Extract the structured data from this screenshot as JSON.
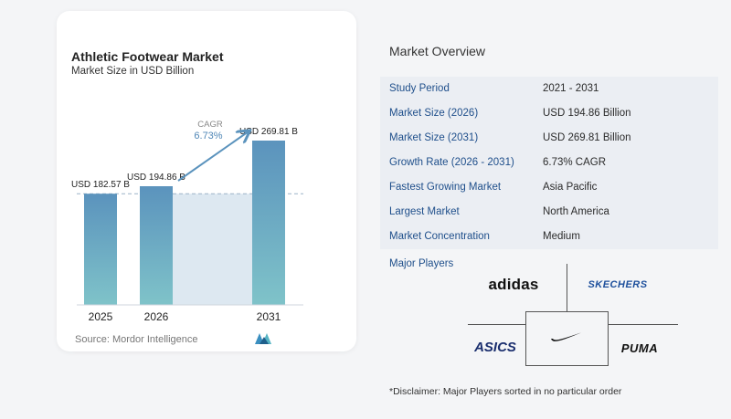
{
  "chart_data": {
    "type": "bar",
    "title": "Athletic Footwear Market",
    "subtitle": "Market Size in USD Billion",
    "categories": [
      "2025",
      "2026",
      "2031"
    ],
    "values": [
      182.57,
      194.86,
      269.81
    ],
    "data_labels": [
      "USD 182.57 B",
      "USD 194.86 B",
      "USD 269.81 B"
    ],
    "cagr_label": "CAGR",
    "cagr_value": "6.73%",
    "bar_color_top": "#5b93bd",
    "bar_color_bottom": "#7fc3c9",
    "band_color": "#dde8f1"
  },
  "source": "Source:  Mordor Intelligence",
  "overview": {
    "title": "Market Overview",
    "rows": [
      {
        "label": "Study Period",
        "value": "2021 - 2031"
      },
      {
        "label": "Market Size (2026)",
        "value": "USD 194.86 Billion"
      },
      {
        "label": "Market Size (2031)",
        "value": "USD 269.81 Billion"
      },
      {
        "label": "Growth Rate (2026 - 2031)",
        "value": "6.73% CAGR"
      },
      {
        "label": "Fastest Growing Market",
        "value": "Asia Pacific"
      },
      {
        "label": "Largest Market",
        "value": "North America"
      },
      {
        "label": "Market Concentration",
        "value": "Medium"
      }
    ]
  },
  "players": {
    "title": "Major Players",
    "brands": [
      "adidas",
      "SKECHERS",
      "asics",
      "Nike",
      "PUMA"
    ]
  },
  "disclaimer": "*Disclaimer: Major Players sorted in no particular order",
  "colors": {
    "label_blue": "#1f4f8b",
    "row_shade": "#ebeef3"
  }
}
